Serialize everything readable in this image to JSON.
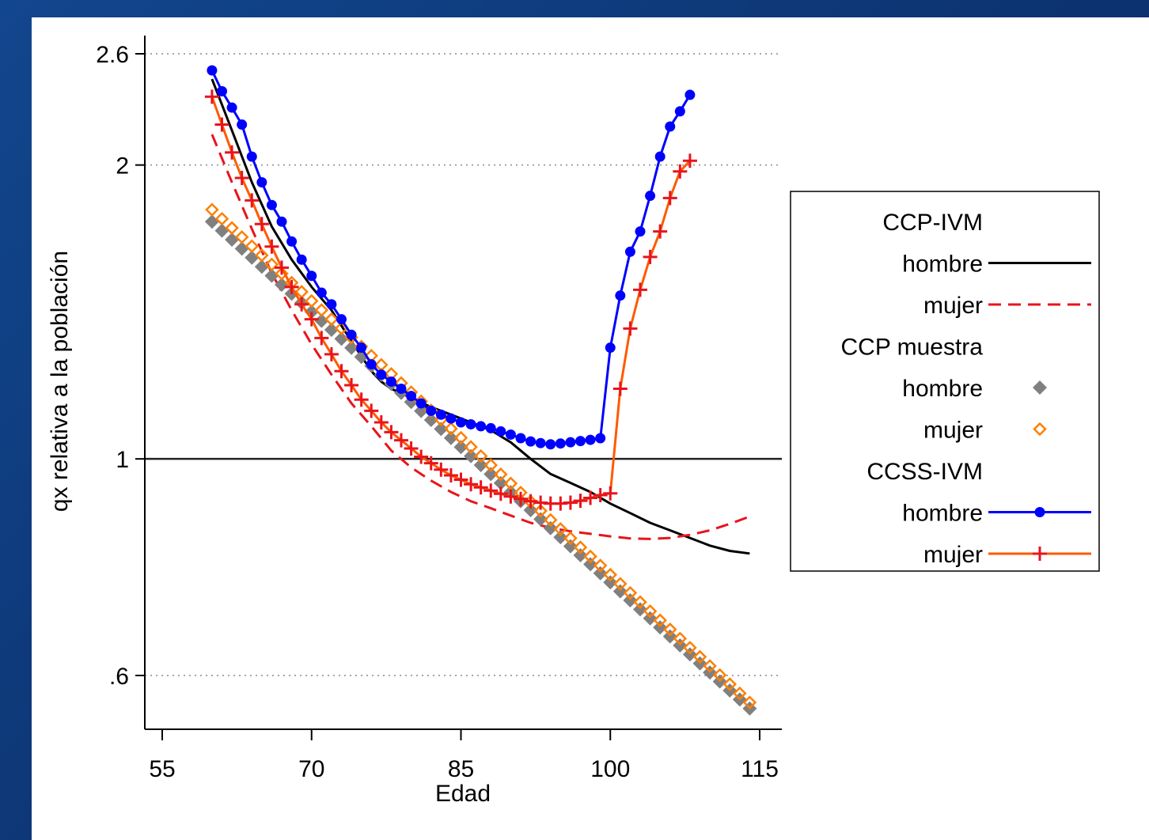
{
  "chart_data": {
    "type": "line",
    "xlabel": "Edad",
    "ylabel": "qx relativa a la población",
    "xlim": [
      54,
      117
    ],
    "ylim": [
      0.55,
      2.75
    ],
    "y_scale": "log",
    "xticks": [
      55,
      70,
      85,
      100,
      115
    ],
    "xtick_labels": [
      "55",
      "70",
      "85",
      "100",
      "115"
    ],
    "yticks": [
      0.6,
      1,
      2,
      2.6
    ],
    "ytick_labels": [
      ".6",
      "1",
      "2",
      "2.6"
    ],
    "grid": "horizontal dotted",
    "reference_line": 1,
    "legend_position": "right",
    "legend": [
      {
        "group": "CCP-IVM"
      },
      {
        "label": "hombre",
        "series": "ccp_ivm_hombre"
      },
      {
        "label": "mujer",
        "series": "ccp_ivm_mujer"
      },
      {
        "group": "CCP muestra"
      },
      {
        "label": "hombre",
        "series": "ccp_muestra_hombre"
      },
      {
        "label": "mujer",
        "series": "ccp_muestra_mujer"
      },
      {
        "group": "CCSS-IVM"
      },
      {
        "label": "hombre",
        "series": "ccss_ivm_hombre"
      },
      {
        "label": "mujer",
        "series": "ccss_ivm_mujer"
      }
    ],
    "series": [
      {
        "id": "ccp_ivm_hombre",
        "color": "#000000",
        "style": "solid",
        "marker": "none",
        "points": [
          [
            60,
            2.45
          ],
          [
            62,
            2.17
          ],
          [
            64,
            1.92
          ],
          [
            66,
            1.73
          ],
          [
            68,
            1.6
          ],
          [
            70,
            1.5
          ],
          [
            72,
            1.42
          ],
          [
            74,
            1.32
          ],
          [
            76,
            1.23
          ],
          [
            77,
            1.2
          ],
          [
            78,
            1.18
          ],
          [
            80,
            1.155
          ],
          [
            82,
            1.13
          ],
          [
            84,
            1.11
          ],
          [
            86,
            1.09
          ],
          [
            88,
            1.07
          ],
          [
            90,
            1.04
          ],
          [
            92,
            1.0
          ],
          [
            94,
            0.965
          ],
          [
            96,
            0.945
          ],
          [
            98,
            0.925
          ],
          [
            100,
            0.9
          ],
          [
            102,
            0.88
          ],
          [
            104,
            0.86
          ],
          [
            106,
            0.845
          ],
          [
            108,
            0.83
          ],
          [
            110,
            0.815
          ],
          [
            112,
            0.805
          ],
          [
            114,
            0.8
          ]
        ]
      },
      {
        "id": "ccp_ivm_mujer",
        "color": "#e8141c",
        "style": "dashed",
        "marker": "none",
        "points": [
          [
            60,
            2.15
          ],
          [
            62,
            1.92
          ],
          [
            64,
            1.72
          ],
          [
            66,
            1.55
          ],
          [
            68,
            1.42
          ],
          [
            70,
            1.31
          ],
          [
            72,
            1.22
          ],
          [
            74,
            1.14
          ],
          [
            76,
            1.08
          ],
          [
            78,
            1.02
          ],
          [
            80,
            0.98
          ],
          [
            82,
            0.95
          ],
          [
            84,
            0.925
          ],
          [
            86,
            0.905
          ],
          [
            88,
            0.89
          ],
          [
            90,
            0.875
          ],
          [
            92,
            0.86
          ],
          [
            94,
            0.85
          ],
          [
            96,
            0.843
          ],
          [
            98,
            0.838
          ],
          [
            100,
            0.833
          ],
          [
            102,
            0.829
          ],
          [
            104,
            0.828
          ],
          [
            106,
            0.83
          ],
          [
            108,
            0.836
          ],
          [
            110,
            0.845
          ],
          [
            112,
            0.858
          ],
          [
            114,
            0.873
          ]
        ]
      },
      {
        "id": "ccp_muestra_hombre",
        "color": "#808080",
        "style": "none",
        "marker": "diamond-filled",
        "start": 60,
        "end": 114,
        "y_start": 1.75,
        "y_end": 0.555
      },
      {
        "id": "ccp_muestra_mujer",
        "color": "#ff7f00",
        "style": "none",
        "marker": "diamond-hollow",
        "start": 60,
        "end": 114,
        "y_start": 1.8,
        "y_end": 0.563
      },
      {
        "id": "ccss_ivm_hombre",
        "color": "#0000ff",
        "style": "solid",
        "marker": "circle",
        "points": [
          [
            60,
            2.5
          ],
          [
            61,
            2.38
          ],
          [
            62,
            2.29
          ],
          [
            63,
            2.2
          ],
          [
            64,
            2.04
          ],
          [
            65,
            1.92
          ],
          [
            66,
            1.82
          ],
          [
            67,
            1.75
          ],
          [
            68,
            1.67
          ],
          [
            69,
            1.6
          ],
          [
            70,
            1.54
          ],
          [
            71,
            1.48
          ],
          [
            72,
            1.44
          ],
          [
            73,
            1.39
          ],
          [
            74,
            1.34
          ],
          [
            75,
            1.3
          ],
          [
            76,
            1.25
          ],
          [
            77,
            1.22
          ],
          [
            78,
            1.2
          ],
          [
            79,
            1.18
          ],
          [
            80,
            1.16
          ],
          [
            81,
            1.14
          ],
          [
            82,
            1.12
          ],
          [
            83,
            1.11
          ],
          [
            84,
            1.1
          ],
          [
            85,
            1.09
          ],
          [
            86,
            1.085
          ],
          [
            87,
            1.08
          ],
          [
            88,
            1.075
          ],
          [
            89,
            1.067
          ],
          [
            90,
            1.059
          ],
          [
            91,
            1.05
          ],
          [
            92,
            1.042
          ],
          [
            93,
            1.038
          ],
          [
            94,
            1.035
          ],
          [
            95,
            1.037
          ],
          [
            96,
            1.04
          ],
          [
            97,
            1.043
          ],
          [
            98,
            1.046
          ],
          [
            99,
            1.05
          ],
          [
            100,
            1.3
          ],
          [
            101,
            1.47
          ],
          [
            102,
            1.63
          ],
          [
            103,
            1.71
          ],
          [
            104,
            1.86
          ],
          [
            105,
            2.04
          ],
          [
            106,
            2.19
          ],
          [
            107,
            2.27
          ],
          [
            108,
            2.36
          ]
        ]
      },
      {
        "id": "ccss_ivm_mujer",
        "color": "#ff5a00",
        "marker_color": "#e8141c",
        "style": "solid",
        "marker": "plus",
        "points": [
          [
            60,
            2.35
          ],
          [
            61,
            2.2
          ],
          [
            62,
            2.06
          ],
          [
            63,
            1.94
          ],
          [
            64,
            1.84
          ],
          [
            65,
            1.74
          ],
          [
            66,
            1.65
          ],
          [
            67,
            1.57
          ],
          [
            68,
            1.5
          ],
          [
            69,
            1.44
          ],
          [
            70,
            1.39
          ],
          [
            71,
            1.33
          ],
          [
            72,
            1.28
          ],
          [
            73,
            1.23
          ],
          [
            74,
            1.19
          ],
          [
            75,
            1.15
          ],
          [
            76,
            1.12
          ],
          [
            77,
            1.09
          ],
          [
            78,
            1.065
          ],
          [
            79,
            1.045
          ],
          [
            80,
            1.025
          ],
          [
            81,
            1.005
          ],
          [
            82,
            0.99
          ],
          [
            83,
            0.975
          ],
          [
            84,
            0.962
          ],
          [
            85,
            0.952
          ],
          [
            86,
            0.942
          ],
          [
            87,
            0.935
          ],
          [
            88,
            0.928
          ],
          [
            89,
            0.921
          ],
          [
            90,
            0.915
          ],
          [
            91,
            0.91
          ],
          [
            92,
            0.905
          ],
          [
            93,
            0.902
          ],
          [
            94,
            0.9
          ],
          [
            95,
            0.9
          ],
          [
            96,
            0.902
          ],
          [
            97,
            0.906
          ],
          [
            98,
            0.912
          ],
          [
            99,
            0.918
          ],
          [
            100,
            0.922
          ],
          [
            101,
            1.18
          ],
          [
            102,
            1.36
          ],
          [
            103,
            1.49
          ],
          [
            104,
            1.61
          ],
          [
            105,
            1.71
          ],
          [
            106,
            1.85
          ],
          [
            107,
            1.97
          ],
          [
            108,
            2.02
          ]
        ]
      }
    ]
  }
}
